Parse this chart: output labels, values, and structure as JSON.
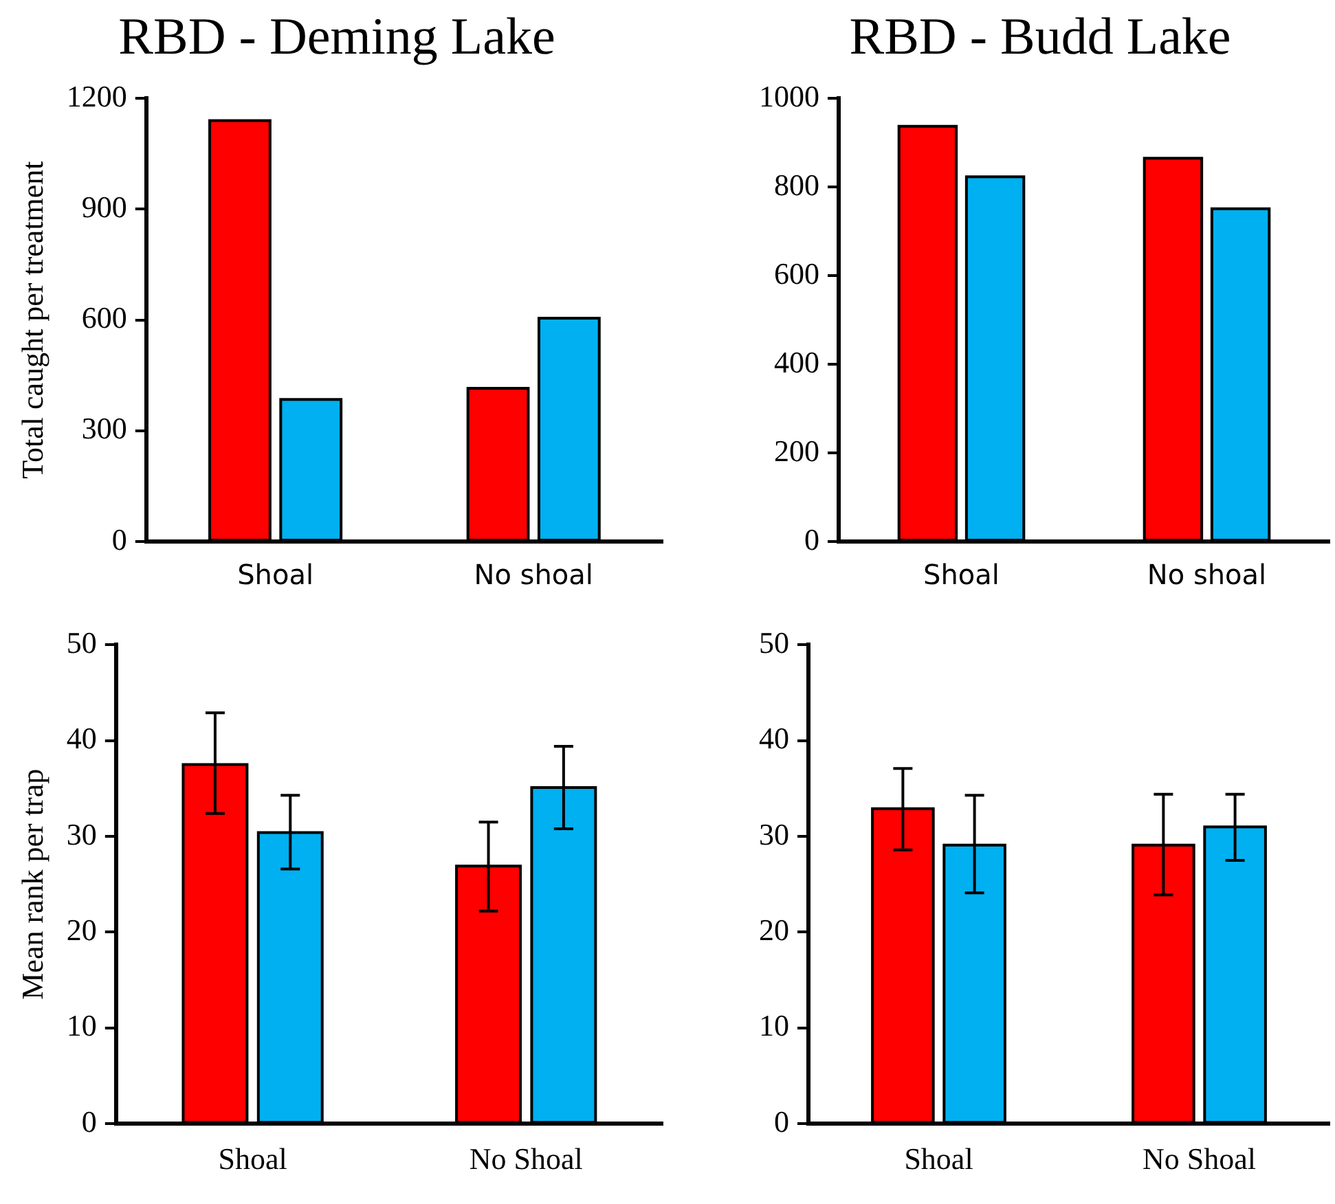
{
  "chart_data": [
    {
      "type": "bar",
      "title": "RBD - Deming Lake",
      "ylabel": "Total caught per treatment",
      "categories": [
        "Shoal",
        "No shoal"
      ],
      "series": [
        {
          "color": "#ff0000",
          "values": [
            1140,
            415
          ]
        },
        {
          "color": "#00b0f0",
          "values": [
            385,
            605
          ]
        }
      ],
      "ylim": [
        0,
        1200
      ],
      "yticks": [
        0,
        300,
        600,
        900,
        1200
      ],
      "grid": false,
      "legend": false
    },
    {
      "type": "bar",
      "title": "RBD - Budd Lake",
      "categories": [
        "Shoal",
        "No shoal"
      ],
      "series": [
        {
          "color": "#ff0000",
          "values": [
            937,
            865
          ]
        },
        {
          "color": "#00b0f0",
          "values": [
            823,
            751
          ]
        }
      ],
      "ylim": [
        0,
        1000
      ],
      "yticks": [
        0,
        200,
        400,
        600,
        800,
        1000
      ],
      "grid": false,
      "legend": false
    },
    {
      "type": "bar",
      "ylabel": "Mean rank per trap",
      "categories": [
        "Shoal",
        "No Shoal"
      ],
      "series": [
        {
          "color": "#ff0000",
          "values": [
            37.5,
            26.9
          ],
          "errors": [
            [
              32.4,
              42.9
            ],
            [
              22.2,
              31.5
            ]
          ]
        },
        {
          "color": "#00b0f0",
          "values": [
            30.4,
            35.1
          ],
          "errors": [
            [
              26.6,
              34.3
            ],
            [
              30.8,
              39.4
            ]
          ]
        }
      ],
      "ylim": [
        0,
        50
      ],
      "yticks": [
        0,
        10,
        20,
        30,
        40,
        50
      ],
      "grid": false,
      "legend": false
    },
    {
      "type": "bar",
      "categories": [
        "Shoal",
        "No Shoal"
      ],
      "series": [
        {
          "color": "#ff0000",
          "values": [
            32.9,
            29.1
          ],
          "errors": [
            [
              28.6,
              37.1
            ],
            [
              23.9,
              34.4
            ]
          ]
        },
        {
          "color": "#00b0f0",
          "values": [
            29.1,
            31.0
          ],
          "errors": [
            [
              24.1,
              34.3
            ],
            [
              27.5,
              34.4
            ]
          ]
        }
      ],
      "ylim": [
        0,
        50
      ],
      "yticks": [
        0,
        10,
        20,
        30,
        40,
        50
      ],
      "grid": false,
      "legend": false
    }
  ]
}
